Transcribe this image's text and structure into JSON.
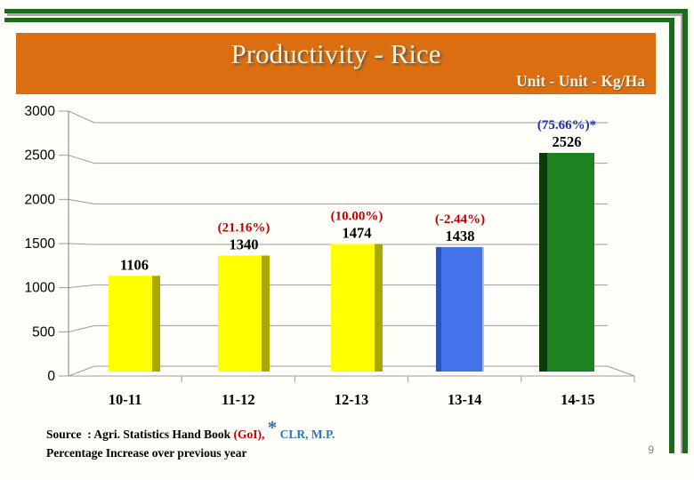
{
  "slide": {
    "background": "#FFFEF9",
    "page_number": "9"
  },
  "frame": {
    "border_color": "#1A6B1A",
    "shadow_color": "#A9A9A9"
  },
  "header": {
    "bg_color": "#DA6E10",
    "text_color": "#FBF2DC",
    "title": "Productivity - Rice",
    "unit_label": "Unit - Unit - Kg/Ha"
  },
  "chart_data": {
    "type": "bar",
    "style": "3d-perspective-columns",
    "title": "",
    "xlabel": "",
    "ylabel": "",
    "categories": [
      "10-11",
      "11-12",
      "12-13",
      "13-14",
      "14-15"
    ],
    "values": [
      1106,
      1340,
      1474,
      1438,
      2526
    ],
    "data_labels": [
      "1106",
      "1340",
      "1474",
      "1438",
      "2526"
    ],
    "pct_labels": [
      "",
      "(21.16%)",
      "(10.00%)",
      "(-2.44%)",
      "(75.66%)*"
    ],
    "pct_label_colors": [
      "",
      "#C00000",
      "#C00000",
      "#C00000",
      "#1F2FA5"
    ],
    "bar_styles": [
      {
        "fill": "#FFFF00",
        "shade": "#A8A800",
        "shade_side": "right"
      },
      {
        "fill": "#FFFF00",
        "shade": "#A8A800",
        "shade_side": "right"
      },
      {
        "fill": "#FFFF00",
        "shade": "#A8A800",
        "shade_side": "right"
      },
      {
        "fill": "#4273E8",
        "shade": "#2B52B5",
        "shade_side": "left",
        "edge": "#A9C0F2"
      },
      {
        "fill": "#1E8220",
        "shade": "#0A3D0A",
        "shade_side": "left"
      }
    ],
    "ylim": [
      0,
      3000
    ],
    "yticks": [
      0,
      500,
      1000,
      1500,
      2000,
      2500,
      3000
    ],
    "grid": true,
    "legend": false,
    "gridline_color": "#9C9C9C",
    "label_color": "#000000"
  },
  "footer": {
    "source_prefix": "Source  : Agri. Statistics Hand Book ",
    "source_goi": "(GoI), ",
    "asterisk": "*",
    "source_suffix": " CLR, M.P.",
    "goi_color": "#C00000",
    "ref_color": "#2E74B5",
    "line2": "Percentage Increase over previous year"
  }
}
